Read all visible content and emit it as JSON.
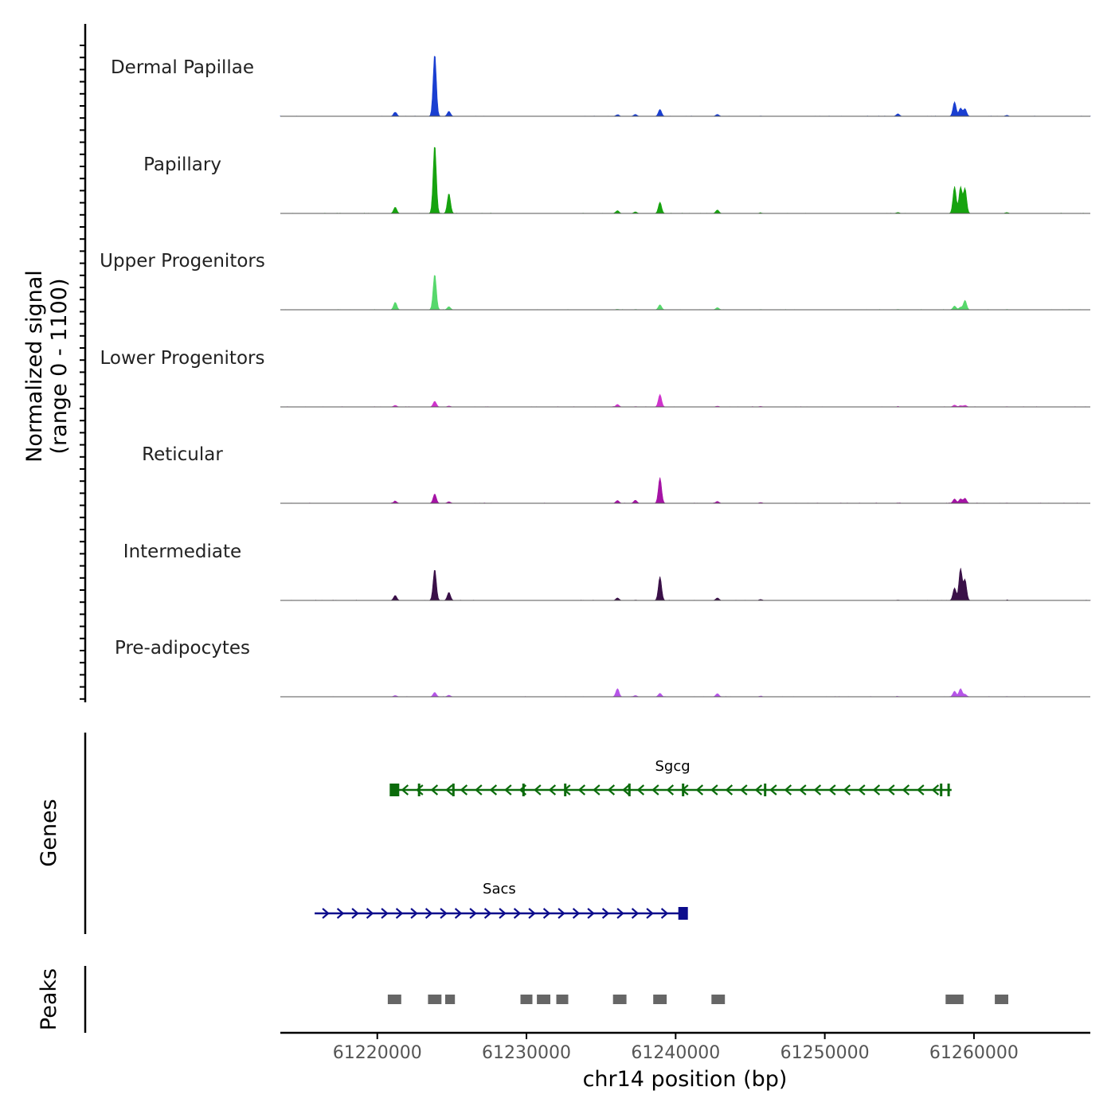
{
  "chart_data": {
    "type": "genome-coverage-tracks",
    "chromosome": "chr14",
    "x_range_bp": [
      61213500,
      61267800
    ],
    "y_axis_label_line1": "Normalized signal",
    "y_axis_label_line2": "(range 0 - 1100)",
    "y_range": [
      0,
      1100
    ],
    "x_axis_label": "chr14 position (bp)",
    "x_ticks": [
      {
        "value": 61220000,
        "label": "61220000"
      },
      {
        "value": 61230000,
        "label": "61230000"
      },
      {
        "value": 61240000,
        "label": "61240000"
      },
      {
        "value": 61250000,
        "label": "61250000"
      },
      {
        "value": 61260000,
        "label": "61260000"
      }
    ],
    "peak_positions_bp": [
      61221200,
      61223850,
      61224800,
      61236100,
      61237300,
      61238950,
      61242800,
      61245700,
      61254900,
      61258700,
      61259100,
      61259400,
      61262200
    ],
    "tracks": [
      {
        "name": "Dermal Papillae",
        "color": "#1a3fd1",
        "peak_values": [
          65,
          1000,
          80,
          25,
          30,
          110,
          30,
          5,
          40,
          230,
          130,
          120,
          15
        ]
      },
      {
        "name": "Papillary",
        "color": "#17a30f",
        "peak_values": [
          100,
          1100,
          320,
          45,
          25,
          180,
          55,
          8,
          15,
          430,
          420,
          400,
          15
        ]
      },
      {
        "name": "Upper Progenitors",
        "color": "#57d86c",
        "peak_values": [
          120,
          570,
          50,
          8,
          5,
          80,
          35,
          5,
          5,
          60,
          40,
          150,
          5
        ]
      },
      {
        "name": "Lower Progenitors",
        "color": "#cf33cc",
        "peak_values": [
          25,
          90,
          15,
          40,
          5,
          200,
          12,
          8,
          5,
          30,
          20,
          25,
          5
        ]
      },
      {
        "name": "Reticular",
        "color": "#a513a5",
        "peak_values": [
          35,
          150,
          25,
          45,
          50,
          410,
          30,
          12,
          5,
          70,
          70,
          80,
          5
        ]
      },
      {
        "name": "Intermediate",
        "color": "#3a1048",
        "peak_values": [
          80,
          500,
          130,
          40,
          5,
          380,
          40,
          15,
          5,
          200,
          510,
          330,
          5
        ]
      },
      {
        "name": "Pre-adipocytes",
        "color": "#b655e8",
        "peak_values": [
          20,
          70,
          25,
          130,
          20,
          55,
          50,
          10,
          5,
          90,
          130,
          40,
          5
        ]
      }
    ],
    "genes": [
      {
        "name": "Sgcg",
        "start": 61221100,
        "end": 61258500,
        "strand": "-",
        "color": "#0b6b0b",
        "exons": [
          61221150,
          61222800,
          61225100,
          61229800,
          61232600,
          61236900,
          61240500,
          61246000,
          61257800,
          61258300
        ]
      },
      {
        "name": "Sacs",
        "start": 61215800,
        "end": 61240550,
        "strand": "+",
        "color": "#0c0c8c",
        "exons": [
          61240500
        ]
      }
    ],
    "peaks_regions": [
      [
        61220700,
        61221600
      ],
      [
        61223400,
        61224300
      ],
      [
        61224550,
        61225200
      ],
      [
        61229600,
        61230400
      ],
      [
        61230700,
        61231600
      ],
      [
        61232000,
        61232800
      ],
      [
        61235800,
        61236700
      ],
      [
        61238500,
        61239400
      ],
      [
        61242400,
        61243300
      ],
      [
        61258100,
        61259300
      ],
      [
        61261400,
        61262300
      ]
    ],
    "genes_track_label": "Genes",
    "peaks_track_label": "Peaks"
  }
}
